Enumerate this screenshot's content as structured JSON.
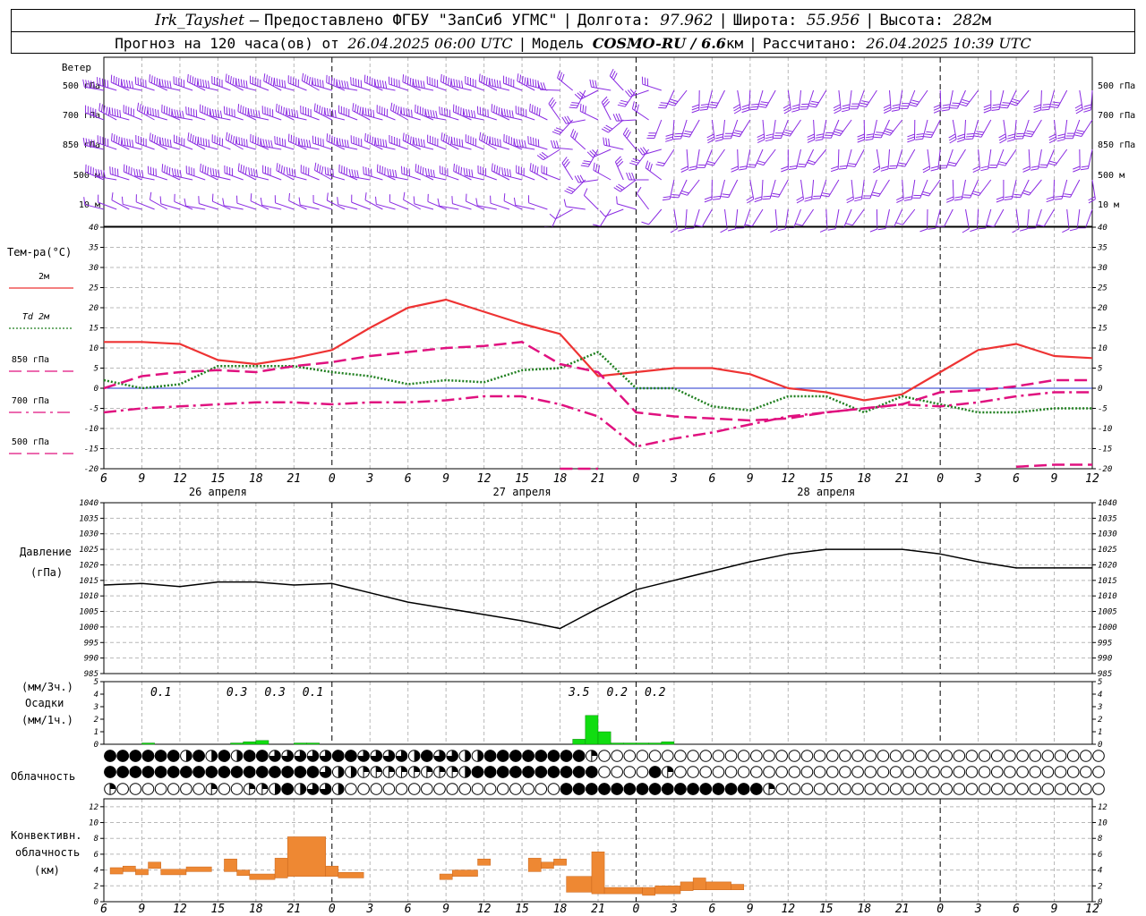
{
  "header": {
    "station": "Irk_Tayshet",
    "dash": "—",
    "provider": "Предоставлено ФГБУ \"ЗапСиб УГМС\"",
    "lon_label": "Долгота:",
    "lon": "97.962",
    "lat_label": "Широта:",
    "lat": "55.956",
    "alt_label": "Высота:",
    "alt": "282",
    "alt_unit": "м",
    "forecast_label": "Прогноз на 120 часа(ов) от",
    "forecast_from": "26.04.2025 06:00 UTC",
    "model_label": "Модель",
    "model": "COSMO-RU / 6.6",
    "model_unit": "км",
    "calc_label": "Рассчитано:",
    "calc_time": "26.04.2025 10:39 UTC"
  },
  "time_axis": {
    "hour_labels": [
      "6",
      "9",
      "12",
      "15",
      "18",
      "21",
      "0",
      "3",
      "6",
      "9",
      "12",
      "15",
      "18",
      "21",
      "0",
      "3",
      "6",
      "9",
      "12",
      "15",
      "18",
      "21",
      "0",
      "3",
      "6",
      "9",
      "12"
    ],
    "day_labels": [
      "26 апреля",
      "27 апреля",
      "28 апреля"
    ]
  },
  "wind_panel": {
    "title": "Ветер",
    "levels": [
      "500 гПа",
      "700 гПа",
      "850 гПа",
      "500 м",
      "10 м"
    ],
    "color": "#8a2be2"
  },
  "chart_data": [
    {
      "type": "line",
      "panel": "temperature",
      "title": "Тем-ра(°С)",
      "x_hours": [
        0,
        3,
        6,
        9,
        12,
        15,
        18,
        21,
        24,
        27,
        30,
        33,
        36,
        39,
        42,
        45,
        48,
        51,
        54,
        57,
        60,
        63,
        66,
        69,
        72,
        75,
        78
      ],
      "ylim": [
        -20,
        40
      ],
      "yticks": [
        -20,
        -15,
        -10,
        -5,
        0,
        5,
        10,
        15,
        20,
        25,
        30,
        35,
        40
      ],
      "grid": true,
      "series": [
        {
          "name": "2м",
          "color": "#ee3333",
          "style": "solid",
          "values": [
            11.5,
            11.5,
            11,
            7,
            6,
            7.5,
            9.5,
            15,
            20,
            22,
            19,
            16,
            13.5,
            3,
            4,
            5,
            5,
            3.5,
            0,
            -1,
            -3,
            -1.5,
            4,
            9.5,
            11,
            8,
            7.5
          ]
        },
        {
          "name": "Td 2м",
          "color": "#1f7f1f",
          "style": "dot",
          "values": [
            2,
            0,
            1,
            5.5,
            5.5,
            5.5,
            4,
            3,
            1,
            2,
            1.5,
            4.5,
            5,
            9,
            0,
            0,
            -4.5,
            -5.5,
            -2,
            -2,
            -6,
            -2,
            -4,
            -6,
            -6,
            -5,
            -5
          ]
        },
        {
          "name": "850 гПа",
          "color": "#e0117f",
          "style": "dash",
          "values": [
            0,
            3,
            4,
            4.5,
            4,
            5.5,
            6.5,
            8,
            9,
            10,
            10.5,
            11.5,
            6,
            4,
            -6,
            -7,
            -7.5,
            -8,
            -7.5,
            -6,
            -5,
            -4,
            -1,
            -0.5,
            0.5,
            2,
            2
          ]
        },
        {
          "name": "700 гПа",
          "color": "#e0117f",
          "style": "dashdot",
          "values": [
            -6,
            -5,
            -4.5,
            -4,
            -3.5,
            -3.5,
            -4,
            -3.5,
            -3.5,
            -3,
            -2,
            -2,
            -4,
            -7,
            -14.5,
            -12.5,
            -11,
            -9,
            -7,
            -6,
            -5,
            -4,
            -4.5,
            -3.5,
            -2,
            -1,
            -1
          ]
        },
        {
          "name": "500 гПа",
          "color": "#e0117f",
          "style": "dash",
          "values": [
            null,
            null,
            null,
            null,
            null,
            null,
            null,
            null,
            null,
            null,
            null,
            null,
            -20,
            -20,
            null,
            null,
            null,
            null,
            null,
            null,
            null,
            null,
            null,
            null,
            -19.5,
            -19,
            -19
          ]
        }
      ]
    },
    {
      "type": "line",
      "panel": "pressure",
      "title": "Давление",
      "ylabel": "(гПа)",
      "x_hours": [
        0,
        3,
        6,
        9,
        12,
        15,
        18,
        21,
        24,
        27,
        30,
        33,
        36,
        39,
        42,
        45,
        48,
        51,
        54,
        57,
        60,
        63,
        66,
        69,
        72,
        75,
        78
      ],
      "ylim": [
        985,
        1040
      ],
      "yticks": [
        985,
        990,
        995,
        1000,
        1005,
        1010,
        1015,
        1020,
        1025,
        1030,
        1035,
        1040
      ],
      "grid": true,
      "series": [
        {
          "name": "Давление",
          "color": "#000000",
          "values": [
            1013.5,
            1014,
            1013,
            1014.5,
            1014.5,
            1013.5,
            1014,
            1011,
            1008,
            1006,
            1004,
            1002,
            999.5,
            1006,
            1012,
            1015,
            1018,
            1021,
            1023.5,
            1025,
            1025,
            1025,
            1023.5,
            1021,
            1019,
            1019,
            1019
          ]
        }
      ]
    },
    {
      "type": "bar",
      "panel": "precipitation",
      "title": "Осадки",
      "ylabel_3h": "(мм/3ч.)",
      "ylabel_1h": "(мм/1ч.)",
      "ylim": [
        0,
        5
      ],
      "yticks": [
        0,
        1,
        2,
        3,
        4,
        5
      ],
      "color": "#11dd11",
      "bars_hour_start": [
        3,
        10,
        11,
        12,
        15,
        16,
        37,
        38,
        39,
        40,
        41,
        42,
        43,
        44
      ],
      "bars_value": [
        0.1,
        0.1,
        0.2,
        0.3,
        0.1,
        0.1,
        0.4,
        2.3,
        1.0,
        0.1,
        0.1,
        0.1,
        0.1,
        0.2
      ],
      "sums_3h": [
        {
          "hour": 4.5,
          "label": "0.1"
        },
        {
          "hour": 10.5,
          "label": "0.3"
        },
        {
          "hour": 13.5,
          "label": "0.3"
        },
        {
          "hour": 16.5,
          "label": "0.1"
        },
        {
          "hour": 37.5,
          "label": "3.5"
        },
        {
          "hour": 40.5,
          "label": "0.2"
        },
        {
          "hour": 43.5,
          "label": "0.2"
        }
      ]
    },
    {
      "type": "table",
      "panel": "cloudiness",
      "title": "Облачность",
      "levels_octas_comment": "rows: upper, middle, lower; values 0-8 octas",
      "rows": [
        [
          8,
          8,
          8,
          8,
          8,
          8,
          4,
          8,
          4,
          8,
          4,
          8,
          8,
          6,
          6,
          6,
          6,
          6,
          8,
          8,
          6,
          6,
          6,
          6,
          4,
          8,
          6,
          6,
          4,
          4,
          8,
          8,
          8,
          8,
          8,
          8,
          8,
          8,
          2,
          0,
          0,
          0,
          0,
          0,
          0,
          0,
          0,
          0,
          0,
          0,
          0,
          0,
          0,
          0,
          0,
          0,
          0,
          0,
          0,
          0,
          0,
          0,
          0,
          0,
          0,
          0,
          0,
          0,
          0,
          0,
          0,
          0,
          0,
          0,
          0,
          0,
          0,
          0,
          0
        ],
        [
          8,
          8,
          8,
          8,
          8,
          8,
          8,
          8,
          8,
          8,
          8,
          8,
          8,
          8,
          8,
          8,
          8,
          6,
          4,
          4,
          2,
          2,
          2,
          2,
          2,
          2,
          2,
          2,
          4,
          8,
          8,
          8,
          8,
          8,
          8,
          8,
          8,
          8,
          8,
          0,
          0,
          0,
          0,
          8,
          2,
          0,
          0,
          0,
          0,
          0,
          0,
          0,
          0,
          0,
          0,
          0,
          0,
          0,
          0,
          0,
          0,
          0,
          0,
          0,
          0,
          0,
          0,
          0,
          0,
          0,
          0,
          0,
          0,
          0,
          0,
          0,
          0,
          0,
          0
        ],
        [
          2,
          0,
          0,
          0,
          0,
          0,
          0,
          0,
          2,
          0,
          0,
          2,
          2,
          4,
          8,
          4,
          6,
          6,
          4,
          0,
          0,
          0,
          0,
          0,
          0,
          0,
          0,
          0,
          0,
          0,
          0,
          0,
          0,
          0,
          0,
          0,
          8,
          8,
          8,
          8,
          8,
          8,
          8,
          8,
          8,
          8,
          8,
          8,
          8,
          8,
          8,
          8,
          2,
          0,
          0,
          0,
          0,
          0,
          0,
          0,
          0,
          0,
          0,
          0,
          0,
          0,
          0,
          0,
          0,
          0,
          0,
          0,
          0,
          0,
          0,
          0,
          0,
          0,
          0
        ]
      ]
    },
    {
      "type": "bar",
      "panel": "convective",
      "title": "Конвективн. облачность",
      "ylabel": "(км)",
      "ylim": [
        0,
        13
      ],
      "yticks": [
        0,
        2,
        4,
        6,
        8,
        10,
        12
      ],
      "color": "#ee8833",
      "segments": [
        {
          "h0": 0.5,
          "h1": 1.5,
          "base": 3.5,
          "top": 4.3
        },
        {
          "h0": 1.5,
          "h1": 2.5,
          "base": 3.8,
          "top": 4.5
        },
        {
          "h0": 2.5,
          "h1": 3.5,
          "base": 3.4,
          "top": 4.1
        },
        {
          "h0": 3.5,
          "h1": 4.5,
          "base": 4.2,
          "top": 5.0
        },
        {
          "h0": 4.5,
          "h1": 6.5,
          "base": 3.4,
          "top": 4.1
        },
        {
          "h0": 6.5,
          "h1": 8.5,
          "base": 3.8,
          "top": 4.4
        },
        {
          "h0": 9.5,
          "h1": 10.5,
          "base": 3.8,
          "top": 5.4
        },
        {
          "h0": 10.5,
          "h1": 11.5,
          "base": 3.3,
          "top": 4.0
        },
        {
          "h0": 11.5,
          "h1": 13.5,
          "base": 2.8,
          "top": 3.5
        },
        {
          "h0": 13.5,
          "h1": 14.5,
          "base": 3.0,
          "top": 5.5
        },
        {
          "h0": 14.5,
          "h1": 17.5,
          "base": 3.2,
          "top": 8.2
        },
        {
          "h0": 17.5,
          "h1": 18.5,
          "base": 3.2,
          "top": 4.5
        },
        {
          "h0": 18.5,
          "h1": 20.5,
          "base": 3.0,
          "top": 3.7
        },
        {
          "h0": 26.5,
          "h1": 27.5,
          "base": 2.8,
          "top": 3.5
        },
        {
          "h0": 27.5,
          "h1": 29.5,
          "base": 3.2,
          "top": 4.0
        },
        {
          "h0": 29.5,
          "h1": 30.5,
          "base": 4.6,
          "top": 5.4
        },
        {
          "h0": 33.5,
          "h1": 34.5,
          "base": 3.8,
          "top": 5.5
        },
        {
          "h0": 34.5,
          "h1": 35.5,
          "base": 4.2,
          "top": 5.0
        },
        {
          "h0": 35.5,
          "h1": 36.5,
          "base": 4.6,
          "top": 5.4
        },
        {
          "h0": 36.5,
          "h1": 38.5,
          "base": 1.2,
          "top": 3.2
        },
        {
          "h0": 38.5,
          "h1": 39.5,
          "base": 1.0,
          "top": 6.3
        },
        {
          "h0": 39.5,
          "h1": 42.5,
          "base": 1.0,
          "top": 1.8
        },
        {
          "h0": 42.5,
          "h1": 43.5,
          "base": 0.8,
          "top": 1.8
        },
        {
          "h0": 43.5,
          "h1": 45.5,
          "base": 1.0,
          "top": 2.0
        },
        {
          "h0": 45.5,
          "h1": 46.5,
          "base": 1.4,
          "top": 2.5
        },
        {
          "h0": 46.5,
          "h1": 47.5,
          "base": 1.5,
          "top": 3.0
        },
        {
          "h0": 47.5,
          "h1": 49.5,
          "base": 1.5,
          "top": 2.5
        },
        {
          "h0": 49.5,
          "h1": 50.5,
          "base": 1.5,
          "top": 2.2
        }
      ]
    }
  ]
}
